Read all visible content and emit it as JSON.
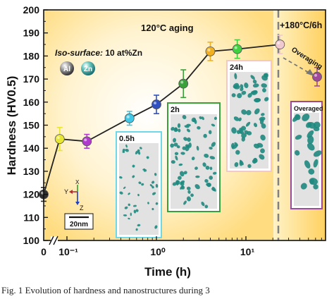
{
  "chart_data": {
    "type": "scatter",
    "xlabel": "Time (h)",
    "ylabel": "Hardness (HV0.5)",
    "ylim": [
      100,
      200
    ],
    "yticks": [
      100,
      110,
      120,
      130,
      140,
      150,
      160,
      170,
      180,
      190,
      200
    ],
    "xscale": "log with axis break",
    "xtick_labels": [
      "0",
      "10⁻¹",
      "10⁰",
      "10¹"
    ],
    "points": [
      {
        "x": 0,
        "y": 120,
        "err": 3,
        "color": "#2f2f2f"
      },
      {
        "x": 0.083,
        "y": 144,
        "err": 5,
        "color": "#e6e633"
      },
      {
        "x": 0.167,
        "y": 143,
        "err": 3,
        "color": "#b03acd"
      },
      {
        "x": 0.5,
        "y": 153,
        "err": 3,
        "color": "#41c8e6"
      },
      {
        "x": 1,
        "y": 159,
        "err": 4,
        "color": "#3050c0"
      },
      {
        "x": 2,
        "y": 168,
        "err": 6,
        "color": "#3aa03a"
      },
      {
        "x": 4,
        "y": 182,
        "err": 4,
        "color": "#f0b020"
      },
      {
        "x": 8,
        "y": 183,
        "err": 4,
        "color": "#40d040"
      },
      {
        "x": 24,
        "y": 185,
        "err": 4,
        "color": "#f0c8d0"
      },
      {
        "x": 30,
        "y": 171,
        "err": 4,
        "color": "#a04a9a"
      }
    ],
    "annotations": {
      "aging_label": "120°C aging",
      "overaging_condition": "+180°C/6h",
      "overaging_arrow_label": "Overaging",
      "iso_surface_prefix": "Iso-surface:",
      "iso_surface_value": " 10 at%Zn",
      "atom_al": "Al",
      "atom_zn": "Zn",
      "scale_bar": "20nm",
      "axis_y": "Y",
      "axis_x": "X",
      "axis_z": "Z"
    },
    "insets": [
      {
        "label": "0.5h",
        "frame_color": "#6fd8e8"
      },
      {
        "label": "2h",
        "frame_color": "#3aa03a"
      },
      {
        "label": "24h",
        "frame_color": "#f0c8d0"
      },
      {
        "label": "Overaged",
        "frame_color": "#9a4a9a"
      }
    ]
  },
  "caption": "Fig. 1 Evolution of hardness and nanostructures during 3"
}
